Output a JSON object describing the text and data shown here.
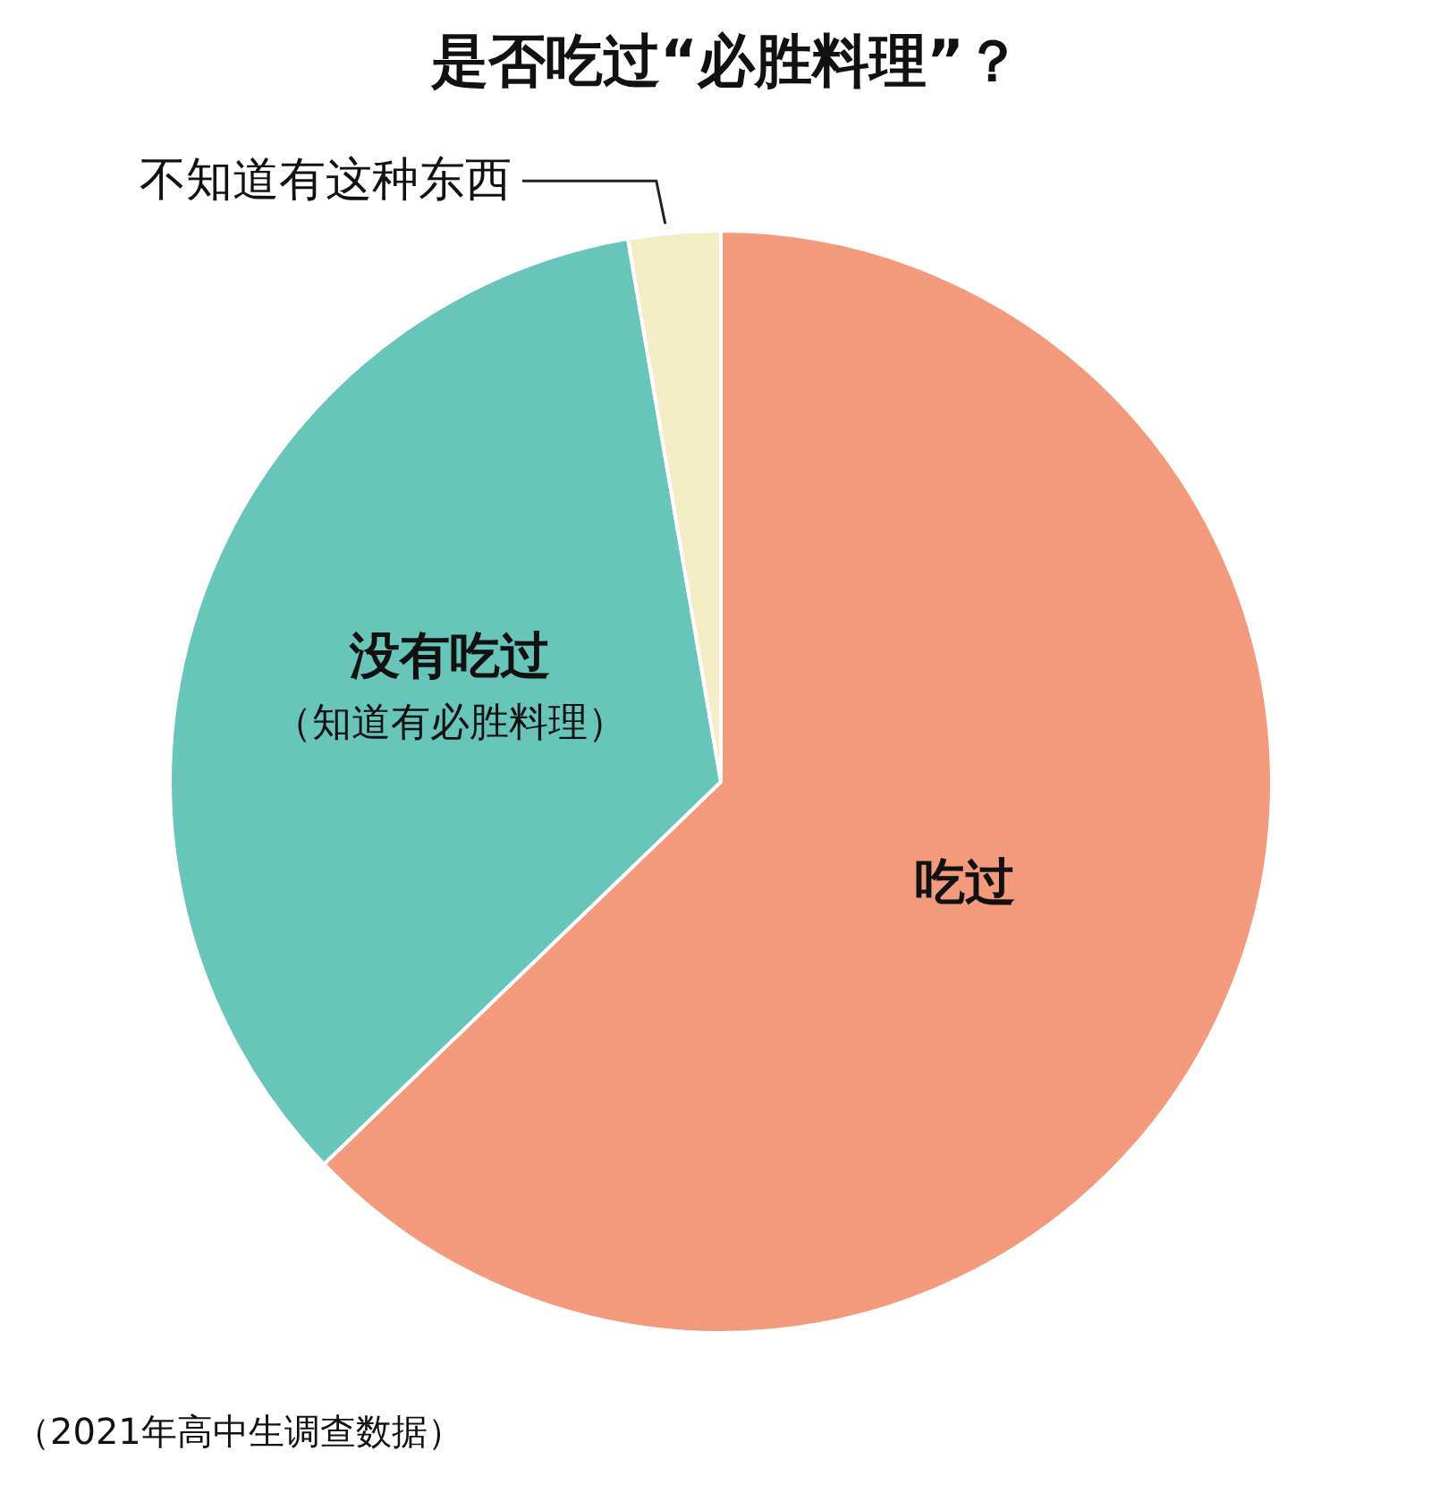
{
  "chart_data": {
    "type": "pie",
    "title": "是否吃过“必胜料理”？",
    "categories": [
      "吃过",
      "没有吃过（知道有必胜料理）",
      "不知道有这种东西"
    ],
    "values": [
      62.8,
      34.5,
      2.7
    ],
    "colors": [
      "#f29a7b",
      "#68c5b9",
      "#f2edc5"
    ],
    "annotations": [
      "（2021年高中生调查数据）"
    ]
  }
}
